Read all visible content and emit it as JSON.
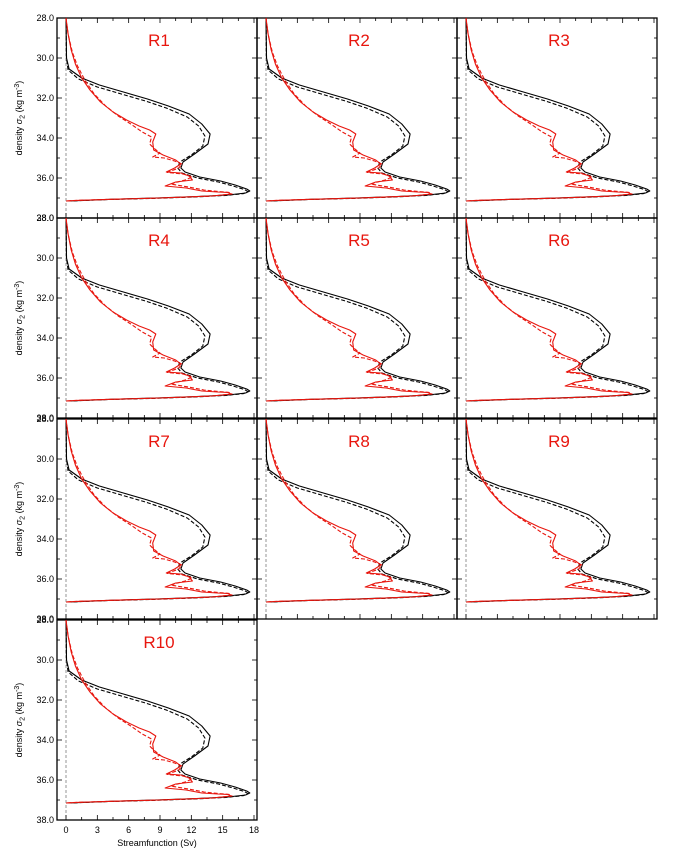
{
  "figure": {
    "ylabel_prefix": "density ",
    "ylabel_sym": "σ",
    "ylabel_sub": "2",
    "ylabel_unit": " (kg m",
    "ylabel_sup": "-3",
    "ylabel_close": ")",
    "xlabel": "Streamfunction (Sv)"
  },
  "chart_data": {
    "type": "line",
    "grid": false,
    "layout": "4x3 panels, last row has one panel",
    "xlim": [
      -1,
      18
    ],
    "ylim": [
      28.0,
      38.0
    ],
    "y_inverted": true,
    "x_ticks": [
      0,
      3,
      6,
      9,
      12,
      15,
      18
    ],
    "x_tick_labels": [
      "0",
      "3",
      "6",
      "9",
      "12",
      "15",
      "18"
    ],
    "y_ticks": [
      28.0,
      30.0,
      32.0,
      34.0,
      36.0,
      38.0
    ],
    "y_tick_labels": [
      "28.0",
      "30.0",
      "32.0",
      "34.0",
      "36.0",
      "38.0"
    ],
    "zero_line": {
      "x": 0,
      "style": "dashed",
      "color": "#7a7a7a"
    },
    "colors": {
      "black": "#000000",
      "red": "#e8160e"
    },
    "panels": [
      "R1",
      "R2",
      "R3",
      "R4",
      "R5",
      "R6",
      "R7",
      "R8",
      "R9",
      "R10"
    ],
    "series": [
      {
        "color": "black",
        "style": "solid",
        "x": [
          0,
          0.05,
          0.3,
          1.5,
          3.2,
          5.5,
          7.8,
          9.8,
          11.8,
          13.0,
          13.8,
          13.6,
          12.3,
          11.2,
          11.0,
          11.4,
          12.8,
          14.8,
          16.2,
          17.3,
          17.6,
          17.2,
          15.5,
          12.5,
          8.5,
          4.0,
          1.5,
          0.3,
          0
        ],
        "y": [
          28.0,
          30.0,
          30.55,
          31.0,
          31.35,
          31.7,
          32.05,
          32.4,
          32.8,
          33.3,
          33.8,
          34.3,
          34.8,
          35.2,
          35.5,
          35.7,
          35.95,
          36.15,
          36.35,
          36.55,
          36.65,
          36.75,
          36.85,
          36.93,
          37.0,
          37.07,
          37.12,
          37.15,
          37.15
        ]
      },
      {
        "color": "black",
        "style": "dashed",
        "x": [
          0,
          0.05,
          0.2,
          1.2,
          3.0,
          5.3,
          7.6,
          9.6,
          11.6,
          12.7,
          13.3,
          13.1,
          12.0,
          10.9,
          10.7,
          11.1,
          12.6,
          14.6,
          16.0,
          17.1,
          17.4,
          17.0,
          15.3,
          12.3,
          8.3,
          3.8,
          1.4,
          0.3,
          0
        ],
        "y": [
          28.0,
          30.0,
          30.6,
          31.05,
          31.45,
          31.8,
          32.15,
          32.5,
          32.95,
          33.4,
          33.9,
          34.4,
          34.85,
          35.2,
          35.5,
          35.75,
          36.0,
          36.2,
          36.4,
          36.58,
          36.68,
          36.78,
          36.87,
          36.95,
          37.02,
          37.08,
          37.13,
          37.15,
          37.15
        ]
      },
      {
        "color": "red",
        "style": "solid",
        "x": [
          0,
          0.2,
          0.5,
          0.9,
          1.5,
          2.3,
          3.3,
          4.5,
          5.8,
          7.0,
          8.0,
          8.6,
          8.3,
          8.4,
          9.3,
          10.5,
          11.0,
          10.4,
          9.6,
          11.0,
          11.8,
          12.1,
          10.5,
          9.5,
          11.5,
          13.0,
          14.5,
          15.5,
          15.8,
          14.0,
          9.0,
          4.0,
          1.0,
          0
        ],
        "y": [
          28.0,
          28.8,
          29.6,
          30.3,
          31.0,
          31.6,
          32.2,
          32.7,
          33.1,
          33.4,
          33.6,
          33.8,
          34.2,
          34.6,
          34.85,
          35.1,
          35.3,
          35.5,
          35.7,
          35.75,
          35.9,
          36.1,
          36.2,
          36.4,
          36.5,
          36.65,
          36.7,
          36.72,
          36.8,
          36.9,
          37.0,
          37.07,
          37.12,
          37.15
        ]
      },
      {
        "color": "red",
        "style": "dashed",
        "x": [
          0,
          0.2,
          0.6,
          1.1,
          1.8,
          2.7,
          3.8,
          5.0,
          6.2,
          7.3,
          8.2,
          8.0,
          8.4,
          9.0,
          8.3,
          9.4,
          10.4,
          11.1,
          10.8,
          9.7,
          11.2,
          12.1,
          11.4,
          10.0,
          11.7,
          13.2,
          14.7,
          15.6,
          15.9,
          14.0,
          9.0,
          4.0,
          1.0,
          0
        ],
        "y": [
          28.0,
          28.8,
          29.7,
          30.4,
          31.1,
          31.8,
          32.4,
          32.9,
          33.3,
          33.7,
          33.95,
          34.3,
          34.5,
          34.75,
          34.95,
          35.0,
          35.15,
          35.3,
          35.5,
          35.72,
          35.8,
          35.95,
          36.1,
          36.3,
          36.45,
          36.6,
          36.68,
          36.72,
          36.8,
          36.9,
          37.0,
          37.07,
          37.12,
          37.15
        ]
      }
    ]
  }
}
